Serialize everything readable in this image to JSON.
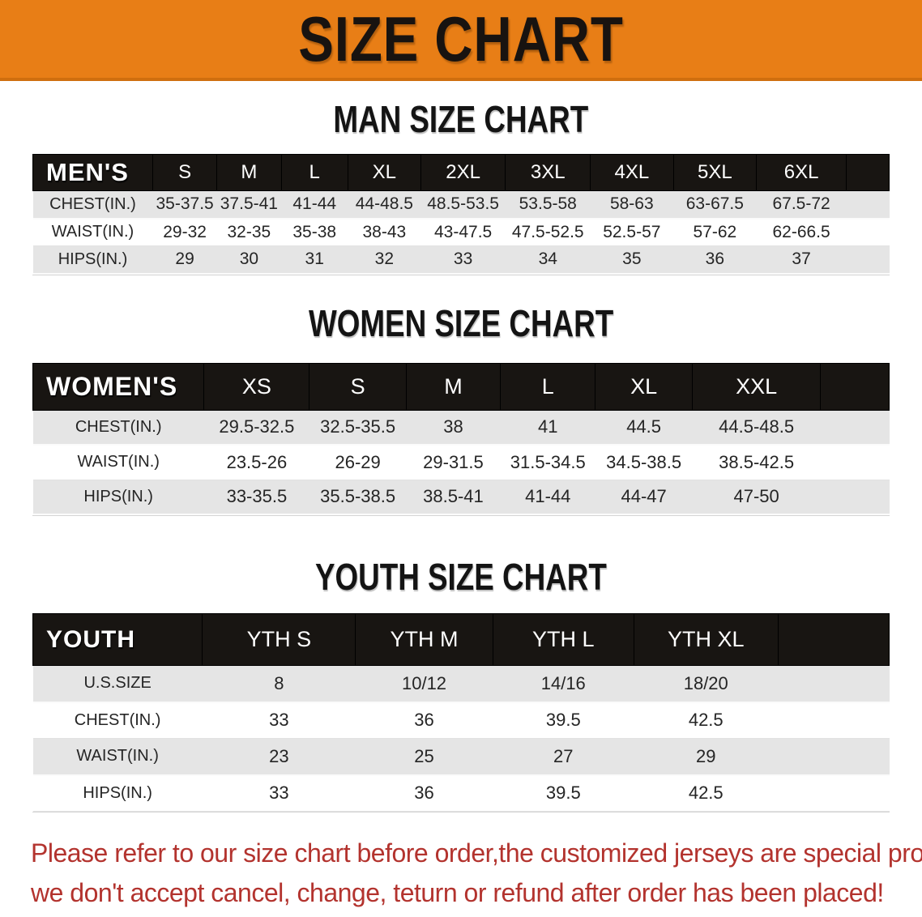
{
  "banner": {
    "title": "SIZE CHART"
  },
  "sections": [
    {
      "heading": "MAN SIZE CHART",
      "table": {
        "label": "MEN'S",
        "columns": [
          "S",
          "M",
          "L",
          "XL",
          "2XL",
          "3XL",
          "4XL",
          "5XL",
          "6XL"
        ],
        "rows": [
          {
            "label": "CHEST(IN.)",
            "values": [
              "35-37.5",
              "37.5-41",
              "41-44",
              "44-48.5",
              "48.5-53.5",
              "53.5-58",
              "58-63",
              "63-67.5",
              "67.5-72"
            ]
          },
          {
            "label": "WAIST(IN.)",
            "values": [
              "29-32",
              "32-35",
              "35-38",
              "38-43",
              "43-47.5",
              "47.5-52.5",
              "52.5-57",
              "57-62",
              "62-66.5"
            ]
          },
          {
            "label": "HIPS(IN.)",
            "values": [
              "29",
              "30",
              "31",
              "32",
              "33",
              "34",
              "35",
              "36",
              "37"
            ]
          }
        ]
      }
    },
    {
      "heading": "WOMEN SIZE CHART",
      "table": {
        "label": "WOMEN'S",
        "columns": [
          "XS",
          "S",
          "M",
          "L",
          "XL",
          "XXL"
        ],
        "rows": [
          {
            "label": "CHEST(IN.)",
            "values": [
              "29.5-32.5",
              "32.5-35.5",
              "38",
              "41",
              "44.5",
              "44.5-48.5"
            ]
          },
          {
            "label": "WAIST(IN.)",
            "values": [
              "23.5-26",
              "26-29",
              "29-31.5",
              "31.5-34.5",
              "34.5-38.5",
              "38.5-42.5"
            ]
          },
          {
            "label": "HIPS(IN.)",
            "values": [
              "33-35.5",
              "35.5-38.5",
              "38.5-41",
              "41-44",
              "44-47",
              "47-50"
            ]
          }
        ]
      }
    },
    {
      "heading": "YOUTH SIZE CHART",
      "table": {
        "label": "YOUTH",
        "columns": [
          "YTH S",
          "YTH M",
          "YTH L",
          "YTH XL"
        ],
        "rows": [
          {
            "label": "U.S.SIZE",
            "values": [
              "8",
              "10/12",
              "14/16",
              "18/20"
            ]
          },
          {
            "label": "CHEST(IN.)",
            "values": [
              "33",
              "36",
              "39.5",
              "42.5"
            ]
          },
          {
            "label": "WAIST(IN.)",
            "values": [
              "23",
              "25",
              "27",
              "29"
            ]
          },
          {
            "label": "HIPS(IN.)",
            "values": [
              "33",
              "36",
              "39.5",
              "42.5"
            ]
          }
        ]
      }
    }
  ],
  "footer": {
    "line1": "Please refer to our size chart before order,the customized jerseys are special products,",
    "line2": "we don't accept cancel, change, teturn or refund after order has been placed!"
  },
  "colors": {
    "banner_bg": "#E87E16",
    "table_header_bg": "#181512",
    "stripe_row_bg": "#E5E5E5",
    "notice_text": "#B3332E"
  }
}
